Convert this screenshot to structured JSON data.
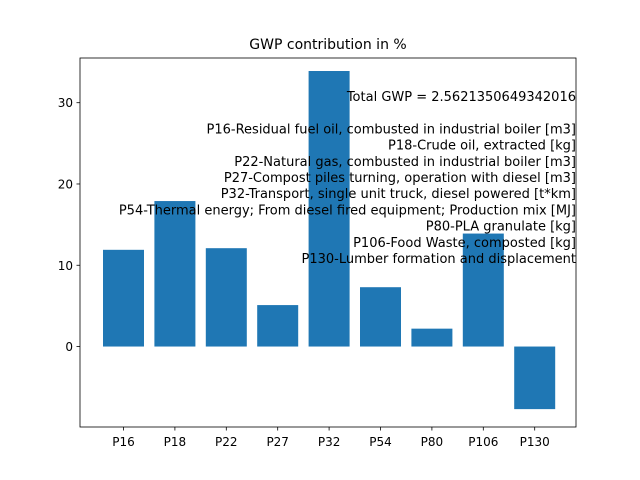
{
  "chart_data": {
    "type": "bar",
    "title": "GWP contribution in %",
    "xlabel": "",
    "ylabel": "",
    "categories": [
      "P16",
      "P18",
      "P22",
      "P27",
      "P32",
      "P54",
      "P80",
      "P106",
      "P130"
    ],
    "values": [
      11.9,
      17.9,
      12.1,
      5.1,
      33.9,
      7.3,
      2.2,
      13.9,
      -7.7
    ],
    "ylim": [
      -9.9,
      35.5
    ],
    "yticks": [
      0,
      10,
      20,
      30
    ],
    "grid": false,
    "bar_color": "#1f77b4",
    "annotation_lines": [
      "Total GWP = 2.5621350649342016",
      "",
      "P16-Residual fuel oil, combusted in industrial boiler [m3]",
      "P18-Crude oil, extracted [kg]",
      "P22-Natural gas, combusted in industrial boiler [m3]",
      "P27-Compost piles turning, operation with diesel [m3]",
      "P32-Transport, single unit truck, diesel powered [t*km]",
      "P54-Thermal energy; From diesel fired equipment; Production mix [MJ]",
      "P80-PLA granulate [kg]",
      "P106-Food Waste, composted [kg]",
      "P130-Lumber formation and displacement"
    ]
  }
}
